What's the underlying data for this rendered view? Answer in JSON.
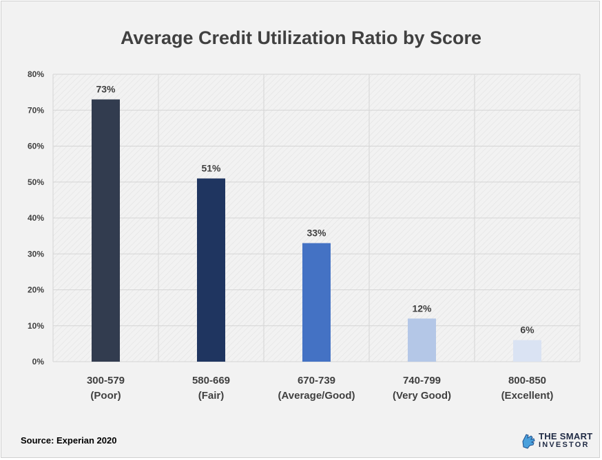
{
  "chart_data": {
    "type": "bar",
    "title": "Average Credit Utilization Ratio by Score",
    "categories": [
      [
        "300-579",
        "(Poor)"
      ],
      [
        "580-669",
        "(Fair)"
      ],
      [
        "670-739",
        "(Average/Good)"
      ],
      [
        "740-799",
        "(Very Good)"
      ],
      [
        "800-850",
        "(Excellent)"
      ]
    ],
    "values": [
      73,
      51,
      33,
      12,
      6
    ],
    "data_labels": [
      "73%",
      "51%",
      "33%",
      "12%",
      "6%"
    ],
    "bar_colors": [
      "#323c4f",
      "#1f3560",
      "#4472c4",
      "#b4c7e7",
      "#dae3f3"
    ],
    "ylim": [
      0,
      80
    ],
    "yticks": [
      0,
      10,
      20,
      30,
      40,
      50,
      60,
      70,
      80
    ],
    "ytick_labels": [
      "0%",
      "10%",
      "20%",
      "30%",
      "40%",
      "50%",
      "60%",
      "70%",
      "80%"
    ],
    "grid": true,
    "legend": "none"
  },
  "footer": {
    "source": "Source: Experian 2020",
    "brand_line1": "THE SMART",
    "brand_line2": "INVESTOR",
    "brand_icon": "hand-icon"
  }
}
